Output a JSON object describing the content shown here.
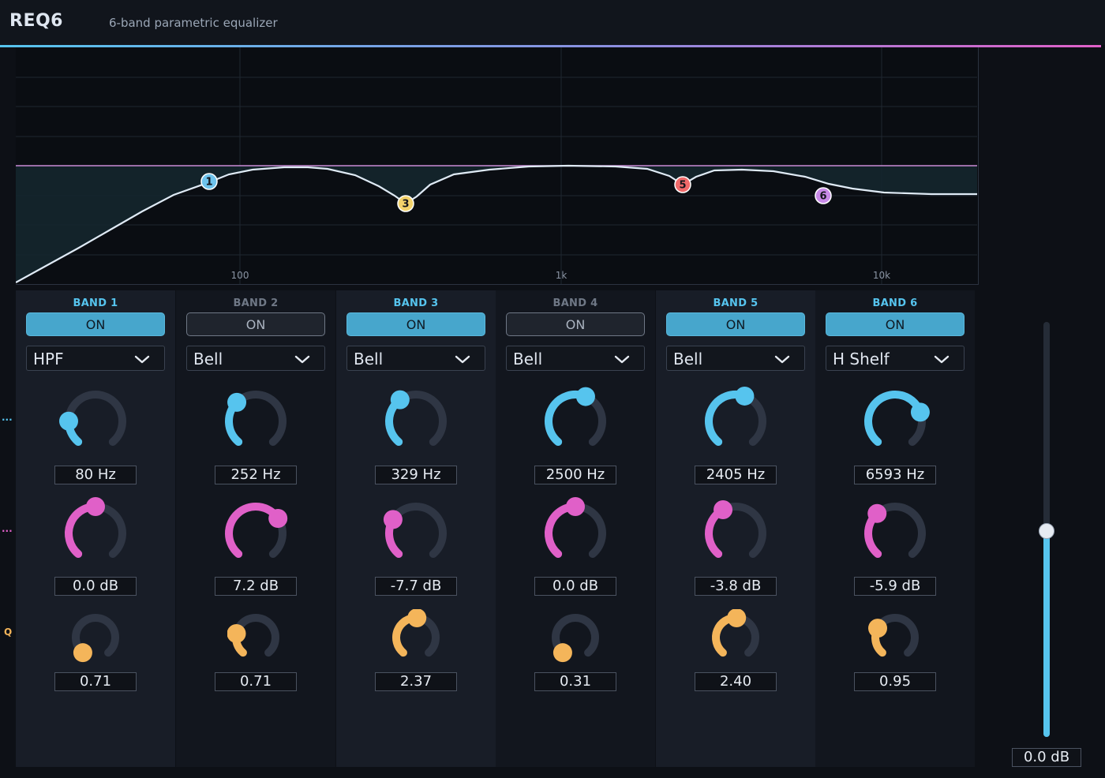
{
  "app": {
    "title": "REQ6",
    "subtitle": "6-band parametric equalizer"
  },
  "colors": {
    "freq": "#56c4ee",
    "gain": "#e060c8",
    "q": "#f4b55a",
    "track": "#2f3644",
    "accent": "#56c4ee"
  },
  "side_marks": {
    "freq": "...",
    "gain": "...",
    "q": "Q"
  },
  "graph": {
    "x_ticks": [
      "100",
      "1k",
      "10k"
    ],
    "nodes": [
      {
        "label": "1",
        "color": "#6ec3ec"
      },
      {
        "label": "3",
        "color": "#f3d36b"
      },
      {
        "label": "5",
        "color": "#f06a6a"
      },
      {
        "label": "6",
        "color": "#c88ae8"
      }
    ]
  },
  "bands": [
    {
      "name": "BAND 1",
      "enabled": true,
      "on_label": "ON",
      "type": "HPF",
      "freq": "80 Hz",
      "gain": "0.0 dB",
      "q": "0.71",
      "freq_pos": 0.18,
      "gain_pos": 0.5,
      "q_pos": 0.0
    },
    {
      "name": "BAND 2",
      "enabled": false,
      "on_label": "ON",
      "type": "Bell",
      "freq": "252 Hz",
      "gain": "7.2 dB",
      "q": "0.71",
      "freq_pos": 0.34,
      "gain_pos": 0.7,
      "q_pos": 0.22
    },
    {
      "name": "BAND 3",
      "enabled": true,
      "on_label": "ON",
      "type": "Bell",
      "freq": "329 Hz",
      "gain": "-7.7 dB",
      "q": "2.37",
      "freq_pos": 0.37,
      "gain_pos": 0.29,
      "q_pos": 0.51
    },
    {
      "name": "BAND 4",
      "enabled": false,
      "on_label": "ON",
      "type": "Bell",
      "freq": "2500 Hz",
      "gain": "0.0 dB",
      "q": "0.31",
      "freq_pos": 0.58,
      "gain_pos": 0.5,
      "q_pos": 0.0
    },
    {
      "name": "BAND 5",
      "enabled": true,
      "on_label": "ON",
      "type": "Bell",
      "freq": "2405 Hz",
      "gain": "-3.8 dB",
      "q": "2.40",
      "freq_pos": 0.57,
      "gain_pos": 0.4,
      "q_pos": 0.51
    },
    {
      "name": "BAND 6",
      "enabled": true,
      "on_label": "ON",
      "type": "H Shelf",
      "freq": "6593 Hz",
      "gain": "-5.9 dB",
      "q": "0.95",
      "freq_pos": 0.75,
      "gain_pos": 0.35,
      "q_pos": 0.28
    }
  ],
  "master": {
    "value": "0.0 dB",
    "level": 0.5
  }
}
